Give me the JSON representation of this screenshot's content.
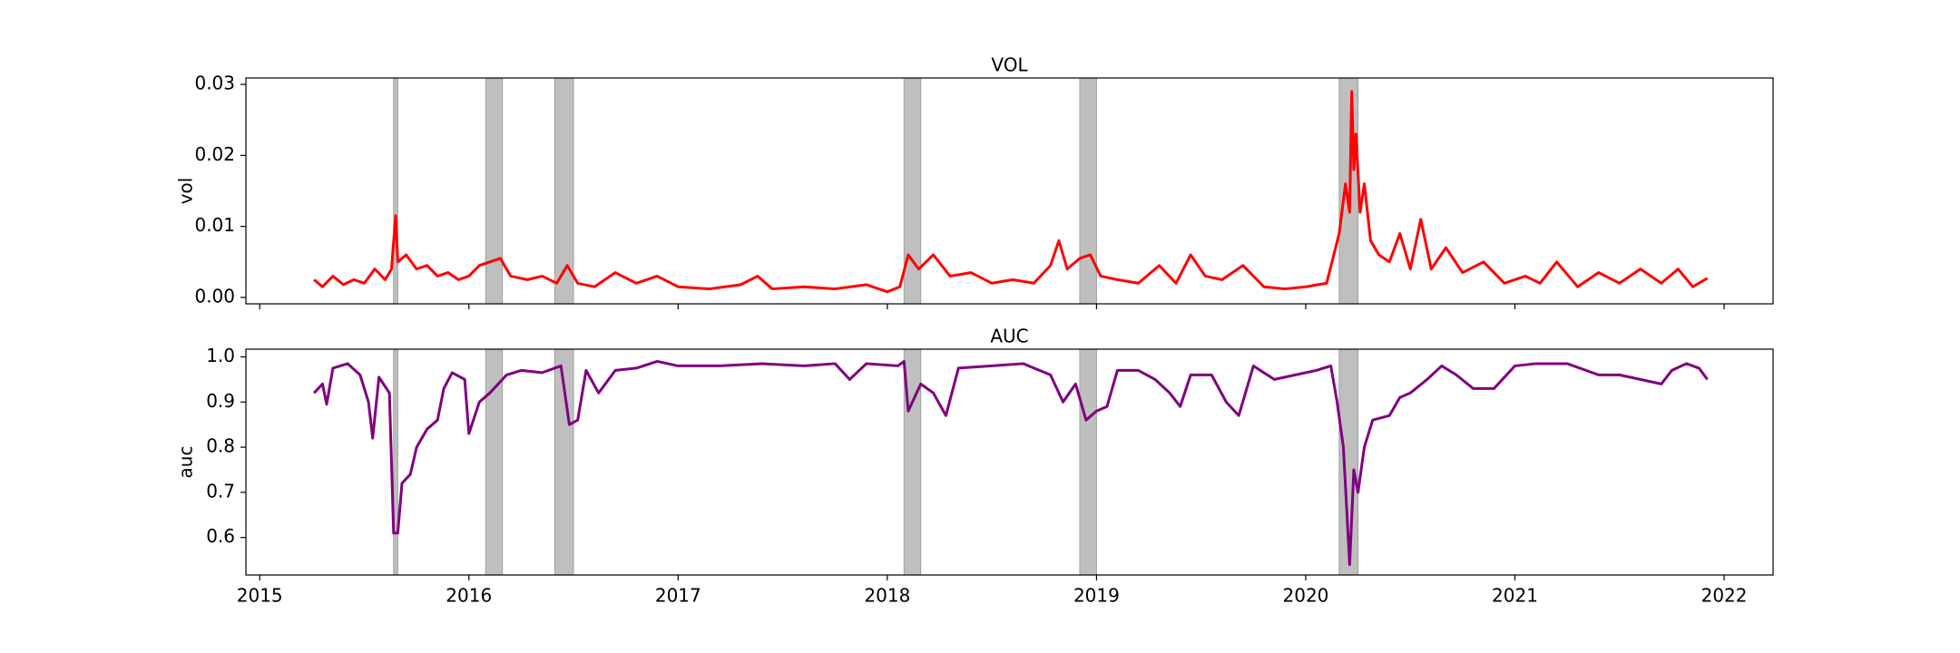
{
  "chart_data": [
    {
      "type": "line",
      "title": "VOL",
      "ylabel": "vol",
      "color": "#ff0000",
      "x": [
        2015.26,
        2015.3,
        2015.35,
        2015.4,
        2015.45,
        2015.5,
        2015.55,
        2015.6,
        2015.63,
        2015.65,
        2015.66,
        2015.7,
        2015.75,
        2015.8,
        2015.85,
        2015.9,
        2015.95,
        2016.0,
        2016.05,
        2016.1,
        2016.15,
        2016.2,
        2016.28,
        2016.35,
        2016.42,
        2016.47,
        2016.52,
        2016.6,
        2016.7,
        2016.8,
        2016.9,
        2017.0,
        2017.15,
        2017.3,
        2017.38,
        2017.45,
        2017.6,
        2017.75,
        2017.9,
        2018.0,
        2018.06,
        2018.1,
        2018.15,
        2018.22,
        2018.3,
        2018.4,
        2018.5,
        2018.6,
        2018.7,
        2018.78,
        2018.82,
        2018.86,
        2018.92,
        2018.97,
        2019.02,
        2019.1,
        2019.2,
        2019.3,
        2019.38,
        2019.45,
        2019.52,
        2019.6,
        2019.7,
        2019.8,
        2019.9,
        2020.0,
        2020.1,
        2020.16,
        2020.19,
        2020.21,
        2020.22,
        2020.23,
        2020.24,
        2020.26,
        2020.28,
        2020.31,
        2020.35,
        2020.4,
        2020.45,
        2020.5,
        2020.55,
        2020.6,
        2020.67,
        2020.75,
        2020.85,
        2020.95,
        2021.05,
        2021.12,
        2021.2,
        2021.3,
        2021.4,
        2021.5,
        2021.6,
        2021.7,
        2021.78,
        2021.85,
        2021.92
      ],
      "values": [
        0.0025,
        0.0015,
        0.003,
        0.0018,
        0.0025,
        0.002,
        0.004,
        0.0025,
        0.004,
        0.0115,
        0.005,
        0.006,
        0.004,
        0.0045,
        0.003,
        0.0035,
        0.0025,
        0.003,
        0.0045,
        0.005,
        0.0055,
        0.003,
        0.0025,
        0.003,
        0.002,
        0.0045,
        0.002,
        0.0015,
        0.0035,
        0.002,
        0.003,
        0.0015,
        0.0012,
        0.0018,
        0.003,
        0.0012,
        0.0015,
        0.0012,
        0.0018,
        0.0008,
        0.0015,
        0.006,
        0.004,
        0.006,
        0.003,
        0.0035,
        0.002,
        0.0025,
        0.002,
        0.0045,
        0.008,
        0.004,
        0.0055,
        0.006,
        0.003,
        0.0025,
        0.002,
        0.0045,
        0.002,
        0.006,
        0.003,
        0.0025,
        0.0045,
        0.0015,
        0.0012,
        0.0015,
        0.002,
        0.009,
        0.016,
        0.012,
        0.029,
        0.018,
        0.023,
        0.012,
        0.016,
        0.008,
        0.006,
        0.005,
        0.009,
        0.004,
        0.011,
        0.004,
        0.007,
        0.0035,
        0.005,
        0.002,
        0.003,
        0.002,
        0.005,
        0.0015,
        0.0035,
        0.002,
        0.004,
        0.002,
        0.004,
        0.0015,
        0.0027
      ],
      "xlim": [
        2014.934,
        2022.234
      ],
      "ylim": [
        -0.0009,
        0.0309
      ],
      "xticks": [
        2015,
        2016,
        2017,
        2018,
        2019,
        2020,
        2021,
        2022
      ],
      "yticks": [
        {
          "value": 0,
          "label": "0.00"
        },
        0.01,
        0.02,
        0.03
      ],
      "shaded_regions": [
        [
          2015.64,
          2015.66
        ],
        [
          2016.08,
          2016.16
        ],
        [
          2016.41,
          2016.5
        ],
        [
          2018.08,
          2018.16
        ],
        [
          2018.92,
          2019.0
        ],
        [
          2020.16,
          2020.25
        ]
      ]
    },
    {
      "type": "line",
      "title": "AUC",
      "ylabel": "auc",
      "color": "#800080",
      "x": [
        2015.26,
        2015.3,
        2015.32,
        2015.35,
        2015.42,
        2015.48,
        2015.52,
        2015.54,
        2015.57,
        2015.62,
        2015.64,
        2015.66,
        2015.68,
        2015.72,
        2015.75,
        2015.8,
        2015.85,
        2015.88,
        2015.92,
        2015.98,
        2016.0,
        2016.05,
        2016.1,
        2016.18,
        2016.25,
        2016.35,
        2016.44,
        2016.48,
        2016.52,
        2016.56,
        2016.62,
        2016.7,
        2016.8,
        2016.9,
        2017.0,
        2017.2,
        2017.4,
        2017.6,
        2017.75,
        2017.82,
        2017.9,
        2018.05,
        2018.08,
        2018.1,
        2018.16,
        2018.22,
        2018.28,
        2018.34,
        2018.5,
        2018.65,
        2018.78,
        2018.84,
        2018.9,
        2018.95,
        2019.0,
        2019.05,
        2019.1,
        2019.2,
        2019.28,
        2019.35,
        2019.4,
        2019.45,
        2019.55,
        2019.62,
        2019.68,
        2019.75,
        2019.85,
        2019.95,
        2020.05,
        2020.12,
        2020.15,
        2020.18,
        2020.21,
        2020.23,
        2020.25,
        2020.28,
        2020.32,
        2020.4,
        2020.45,
        2020.5,
        2020.58,
        2020.65,
        2020.72,
        2020.8,
        2020.9,
        2021.0,
        2021.1,
        2021.25,
        2021.4,
        2021.5,
        2021.6,
        2021.7,
        2021.75,
        2021.82,
        2021.88,
        2021.92
      ],
      "values": [
        0.92,
        0.94,
        0.895,
        0.975,
        0.985,
        0.96,
        0.9,
        0.82,
        0.955,
        0.92,
        0.61,
        0.61,
        0.72,
        0.74,
        0.8,
        0.84,
        0.86,
        0.93,
        0.965,
        0.95,
        0.83,
        0.9,
        0.92,
        0.96,
        0.97,
        0.965,
        0.98,
        0.85,
        0.86,
        0.97,
        0.92,
        0.97,
        0.975,
        0.99,
        0.98,
        0.98,
        0.985,
        0.98,
        0.985,
        0.95,
        0.985,
        0.98,
        0.99,
        0.88,
        0.94,
        0.92,
        0.87,
        0.975,
        0.98,
        0.985,
        0.96,
        0.9,
        0.94,
        0.86,
        0.88,
        0.89,
        0.97,
        0.97,
        0.95,
        0.92,
        0.89,
        0.96,
        0.96,
        0.9,
        0.87,
        0.98,
        0.95,
        0.96,
        0.97,
        0.98,
        0.9,
        0.8,
        0.54,
        0.75,
        0.7,
        0.8,
        0.86,
        0.87,
        0.91,
        0.92,
        0.95,
        0.98,
        0.96,
        0.93,
        0.93,
        0.98,
        0.985,
        0.985,
        0.96,
        0.96,
        0.95,
        0.94,
        0.97,
        0.985,
        0.975,
        0.95
      ],
      "xlim": [
        2014.934,
        2022.234
      ],
      "ylim": [
        0.517,
        1.017
      ],
      "xticks": [
        2015,
        2016,
        2017,
        2018,
        2019,
        2020,
        2021,
        2022
      ],
      "yticks": [
        0.6,
        0.7,
        0.8,
        0.9,
        {
          "value": 1,
          "label": "1.0"
        }
      ],
      "shaded_regions": [
        [
          2015.64,
          2015.66
        ],
        [
          2016.08,
          2016.16
        ],
        [
          2016.41,
          2016.5
        ],
        [
          2018.08,
          2018.16
        ],
        [
          2018.92,
          2019.0
        ],
        [
          2020.16,
          2020.25
        ]
      ]
    }
  ]
}
